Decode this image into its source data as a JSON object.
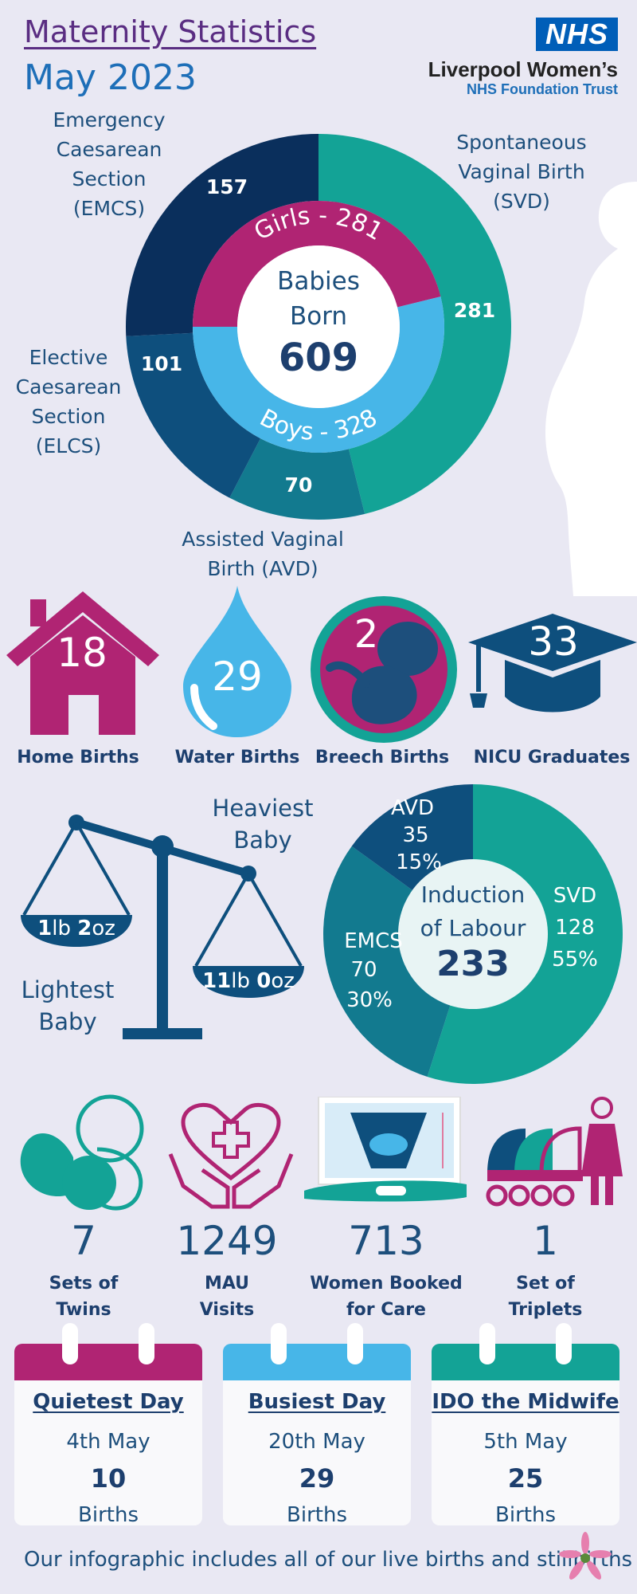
{
  "header": {
    "title": "Maternity Statistics",
    "subtitle": "May 2023",
    "logo_badge": "NHS",
    "trust_name": "Liverpool Women’s",
    "trust_sub": "NHS Foundation Trust"
  },
  "births_donut": {
    "center_line1": "Babies",
    "center_line2": "Born",
    "center_total": "609",
    "girls_label": "Girls - 281",
    "boys_label": "Boys - 328",
    "segments": [
      {
        "name": "Spontaneous Vaginal Birth (SVD)",
        "value": "281",
        "color": "#13a396"
      },
      {
        "name": "Assisted Vaginal Birth (AVD)",
        "value": "70",
        "color": "#127a8f"
      },
      {
        "name": "Elective Caesarean Section (ELCS)",
        "value": "101",
        "color": "#0e4f7d"
      },
      {
        "name": "Emergency Caesarean Section (EMCS)",
        "value": "157",
        "color": "#0a2f5c"
      }
    ],
    "inner": [
      {
        "name": "Girls",
        "value": 281,
        "color": "#b02473"
      },
      {
        "name": "Boys",
        "value": 328,
        "color": "#47b6e8"
      }
    ],
    "labels": {
      "emcs": [
        "Emergency",
        "Caesarean",
        "Section",
        "(EMCS)"
      ],
      "svd": [
        "Spontaneous",
        "Vaginal Birth",
        "(SVD)"
      ],
      "elcs": [
        "Elective",
        "Caesarean",
        "Section",
        "(ELCS)"
      ],
      "avd": [
        "Assisted Vaginal",
        "Birth (AVD)"
      ]
    }
  },
  "icon_stats": [
    {
      "icon": "house-icon",
      "value": "18",
      "label": "Home Births"
    },
    {
      "icon": "water-drop-icon",
      "value": "29",
      "label": "Water Births"
    },
    {
      "icon": "baby-in-womb-icon",
      "value": "2",
      "label": "Breech Births"
    },
    {
      "icon": "graduation-cap-icon",
      "value": "33",
      "label": "NICU Graduates"
    }
  ],
  "weights": {
    "heaviest_label": [
      "Heaviest",
      "Baby"
    ],
    "lightest_label": [
      "Lightest",
      "Baby"
    ],
    "lightest_value": {
      "lb": "1",
      "lb_unit": "lb",
      "oz": "2",
      "oz_unit": "oz"
    },
    "heaviest_value": {
      "lb": "11",
      "lb_unit": "lb",
      "oz": "0",
      "oz_unit": "oz"
    }
  },
  "chart_data": {
    "type": "pie",
    "title": "Induction of Labour",
    "total": "233",
    "center_line1": "Induction",
    "center_line2": "of Labour",
    "slices": [
      {
        "name": "SVD",
        "value": 128,
        "value_label": "128",
        "percent": "55%",
        "color": "#13a396"
      },
      {
        "name": "EMCS",
        "value": 70,
        "value_label": "70",
        "percent": "30%",
        "color": "#127a8f"
      },
      {
        "name": "AVD",
        "value": 35,
        "value_label": "35",
        "percent": "15%",
        "color": "#0e4f7d"
      }
    ]
  },
  "bottom_stats": [
    {
      "icon": "twins-icon",
      "value": "7",
      "label": [
        "Sets of",
        "Twins"
      ]
    },
    {
      "icon": "heart-hands-icon",
      "value": "1249",
      "label": [
        "MAU",
        "Visits"
      ]
    },
    {
      "icon": "ultrasound-icon",
      "value": "713",
      "label": [
        "Women Booked",
        "for Care"
      ]
    },
    {
      "icon": "prams-icon",
      "value": "1",
      "label": [
        "Set of",
        "Triplets"
      ]
    }
  ],
  "calendars": [
    {
      "title": "Quietest Day",
      "date": "4th May",
      "value": "10",
      "unit": "Births",
      "color": "#b02473"
    },
    {
      "title": "Busiest Day",
      "date": "20th May",
      "value": "29",
      "unit": "Births",
      "color": "#47b6e8"
    },
    {
      "title": "IDO the Midwife",
      "date": "5th May",
      "value": "25",
      "unit": "Births",
      "color": "#13a396"
    }
  ],
  "footer": {
    "text": "Our infographic includes all of our live births and stillbirths"
  }
}
